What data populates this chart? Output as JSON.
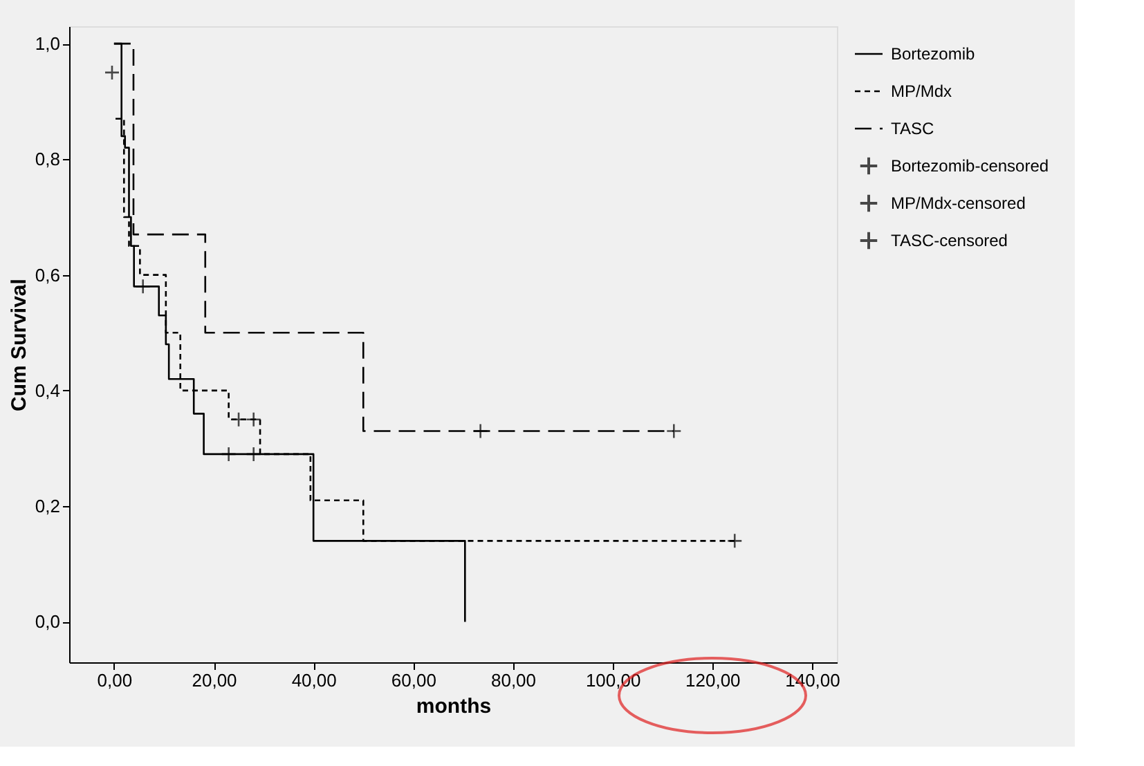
{
  "chart_data": {
    "type": "step",
    "xlabel": "months",
    "ylabel": "Cum Survival",
    "xlim": [
      -9,
      145
    ],
    "ylim": [
      -0.07,
      1.03
    ],
    "xticks": [
      {
        "value": 0,
        "label": "0,00"
      },
      {
        "value": 20,
        "label": "20,00"
      },
      {
        "value": 40,
        "label": "40,00"
      },
      {
        "value": 60,
        "label": "60,00"
      },
      {
        "value": 80,
        "label": "80,00"
      },
      {
        "value": 100,
        "label": "100,00"
      },
      {
        "value": 120,
        "label": "120,00"
      },
      {
        "value": 140,
        "label": "140,00"
      }
    ],
    "yticks": [
      {
        "value": 0,
        "label": "0,0"
      },
      {
        "value": 0.2,
        "label": "0,2"
      },
      {
        "value": 0.4,
        "label": "0,4"
      },
      {
        "value": 0.6,
        "label": "0,6"
      },
      {
        "value": 0.8,
        "label": "0,8"
      },
      {
        "value": 1,
        "label": "1,0"
      }
    ],
    "grid": false,
    "legend": "right",
    "series": [
      {
        "name": "Bortezomib",
        "color": "#000000",
        "line_style": "solid",
        "x": [
          0,
          1.5,
          2.2,
          3,
          3.4,
          4,
          9,
          10.4,
          11,
          16,
          18,
          40,
          70.4,
          70.4
        ],
        "values": [
          1.0,
          0.84,
          0.82,
          0.7,
          0.65,
          0.58,
          0.53,
          0.48,
          0.42,
          0.36,
          0.29,
          0.14,
          0.14,
          0
        ]
      },
      {
        "name": "MP/Mdx",
        "color": "#000000",
        "line_style": "dotted",
        "x": [
          0.3,
          2,
          3,
          5.2,
          10.4,
          13.3,
          23,
          29.3,
          39.4,
          50,
          124.5
        ],
        "values": [
          0.87,
          0.7,
          0.65,
          0.6,
          0.5,
          0.4,
          0.35,
          0.29,
          0.21,
          0.14,
          0.14
        ]
      },
      {
        "name": "TASC",
        "color": "#000000",
        "line_style": "dashed",
        "x": [
          0,
          3.9,
          18.3,
          50,
          112.3
        ],
        "values": [
          1.0,
          0.67,
          0.5,
          0.33,
          0.33
        ]
      },
      {
        "name": "Bortezomib-censored",
        "type": "scatter",
        "marker": "cross",
        "color": "#000000",
        "x": [
          5.8,
          23,
          28
        ],
        "values": [
          0.58,
          0.29,
          0.29
        ]
      },
      {
        "name": "MP/Mdx-censored",
        "type": "scatter",
        "marker": "cross",
        "color": "#000000",
        "x": [
          25,
          28,
          124.5
        ],
        "values": [
          0.35,
          0.35,
          0.14
        ]
      },
      {
        "name": "TASC-censored",
        "type": "scatter",
        "marker": "cross",
        "color": "#000000",
        "x": [
          -0.4,
          73.5,
          112.3
        ],
        "values": [
          0.95,
          0.33,
          0.33
        ]
      }
    ]
  }
}
